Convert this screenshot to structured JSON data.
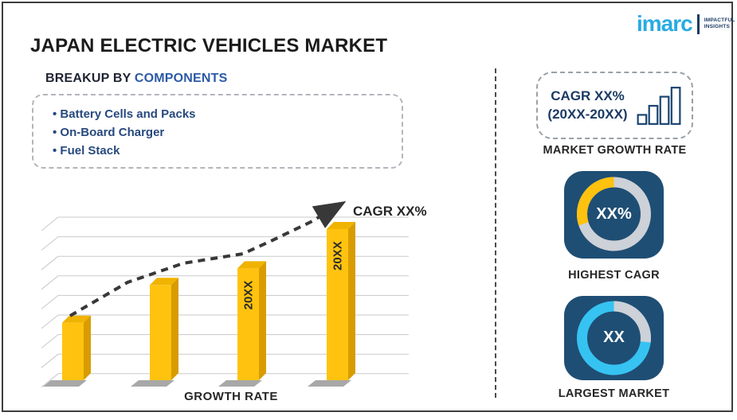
{
  "page": {
    "title": "JAPAN ELECTRIC VEHICLES MARKET"
  },
  "logo": {
    "brand": "imarc",
    "tagline_line1": "IMPACTFUL",
    "tagline_line2": "INSIGHTS",
    "brand_color": "#29ABE2",
    "tagline_color": "#1B3A64"
  },
  "breakup": {
    "label_prefix": "BREAKUP BY ",
    "label_highlight": "COMPONENTS",
    "items": [
      "Battery Cells and Packs",
      "On-Board Charger",
      "Fuel Stack"
    ]
  },
  "chart_data": {
    "type": "bar",
    "title": "GROWTH RATE",
    "values": [
      38,
      63,
      74,
      100
    ],
    "values_unit": "percent of tallest bar (placeholder infographic, no numeric axis shown)",
    "bar_labels": [
      "",
      "",
      "20XX",
      "20XX"
    ],
    "trend_label": "CAGR XX%",
    "gridlines": 9,
    "legend": false,
    "grid": true
  },
  "colors": {
    "bar": {
      "front": "#FFC30F",
      "top": "#F0B300",
      "side": "#D89C00",
      "shadow": "#3f3f3f"
    },
    "gridline": "#c9c9c9",
    "trend": "#383838",
    "tile": "#1F4E74",
    "ring_track": "#CDD1D8",
    "ring_yellow": "#FFC20E",
    "ring_cyan": "#36C3F2"
  },
  "right_panel": {
    "growth_box": {
      "line1": "CAGR XX%",
      "line2": "(20XX-20XX)",
      "caption": "MARKET GROWTH RATE",
      "icon": "ascending-bars-icon"
    },
    "highest_cagr": {
      "center_label": "XX%",
      "caption": "HIGHEST CAGR",
      "ring": {
        "track": "#CDD1D8",
        "active": "#FFC20E",
        "active_start_deg": 252,
        "active_end_deg": 360
      }
    },
    "largest_market": {
      "center_label": "XX",
      "caption": "LARGEST MARKET",
      "ring": {
        "track": "#36C3F2",
        "overlay": "#CDD1D8",
        "overlay_start_deg": 0,
        "overlay_end_deg": 97
      }
    }
  }
}
